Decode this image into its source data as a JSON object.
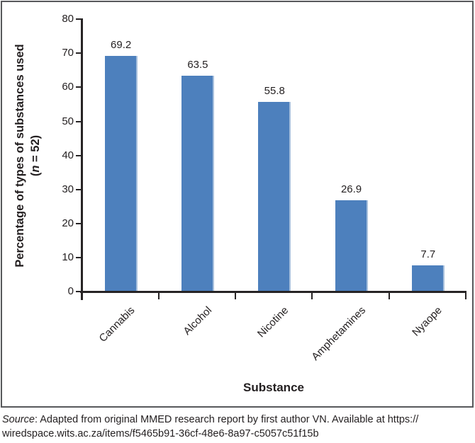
{
  "figure": {
    "background": "#ffffff",
    "border_color": "#57585b"
  },
  "chart_data": {
    "type": "bar",
    "title": "",
    "categories": [
      "Cannabis",
      "Alcohol",
      "Nicotine",
      "Amphetamines",
      "Nyaope"
    ],
    "values": [
      69.2,
      63.5,
      55.8,
      26.9,
      7.7
    ],
    "data_labels": [
      "69.2",
      "63.5",
      "55.8",
      "26.9",
      "7.7"
    ],
    "xlabel": "Substance",
    "ylabel": {
      "line1": "Percentage of types of substances used",
      "line2_open": "(",
      "line2_n": "n",
      "line2_rest": " = 52)"
    },
    "ylim": [
      0,
      80
    ],
    "yticks": [
      0,
      10,
      20,
      30,
      40,
      50,
      60,
      70,
      80
    ],
    "grid": false,
    "legend": "none",
    "bar_color": "#4d80bd",
    "bar_edge_highlight": "#a9c1dd",
    "axis_color": "#272425",
    "label_color": "#231f20"
  },
  "source_note": {
    "italic_word": "Source",
    "line1_rest": ": Adapted from original MMED research report by first author VN. Available at https://",
    "line2": "wiredspace.wits.ac.za/items/f5465b91-36cf-48e6-8a97-c5057c51f15b"
  }
}
